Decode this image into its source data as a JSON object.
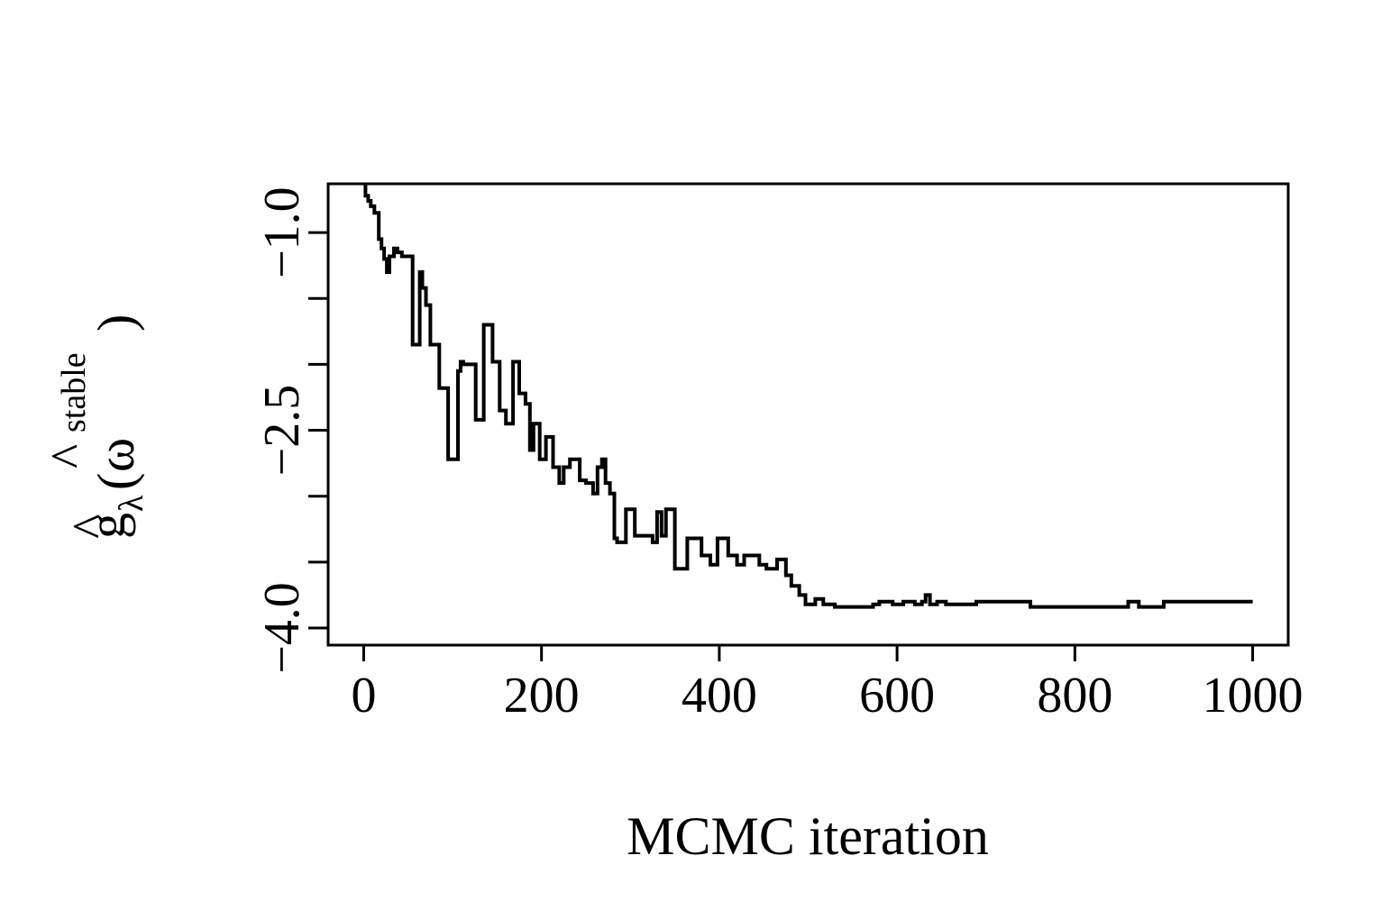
{
  "chart_data": {
    "type": "line",
    "title": "",
    "xlabel": "MCMC iteration",
    "ylabel": {
      "hat": "^",
      "g": "g",
      "sub": "λ",
      "open": "(",
      "omega": "ω",
      "sup": "stable",
      "close": ")"
    },
    "xlim": [
      -40,
      1040
    ],
    "ylim": [
      -4.13,
      -0.63
    ],
    "xticks": [
      0,
      200,
      400,
      600,
      800,
      1000
    ],
    "xtick_labels": [
      "0",
      "200",
      "400",
      "600",
      "800",
      "1000"
    ],
    "yticks": [
      -4.0,
      -3.5,
      -3.0,
      -2.5,
      -2.0,
      -1.5,
      -1.0
    ],
    "ytick_labels": [
      {
        "value": -4.0,
        "text": "−4.0"
      },
      {
        "value": -2.5,
        "text": "−2.5"
      },
      {
        "value": -1.0,
        "text": "−1.0"
      }
    ],
    "grid": false,
    "legend": "none",
    "line_color": "#000000",
    "series": [
      {
        "step": true,
        "x": [
          0,
          2,
          5,
          8,
          12,
          17,
          20,
          23,
          26,
          29,
          34,
          38,
          43,
          47,
          55,
          63,
          66,
          70,
          75,
          85,
          95,
          106,
          109,
          112,
          116,
          126,
          135,
          145,
          153,
          160,
          168,
          175,
          182,
          187,
          191,
          198,
          205,
          213,
          220,
          225,
          232,
          243,
          250,
          258,
          263,
          268,
          272,
          277,
          282,
          285,
          295,
          305,
          315,
          325,
          330,
          335,
          340,
          350,
          364,
          380,
          390,
          398,
          410,
          420,
          428,
          435,
          445,
          453,
          465,
          475,
          481,
          490,
          497,
          508,
          517,
          530,
          560,
          573,
          580,
          595,
          607,
          620,
          628,
          632,
          637,
          645,
          655,
          668,
          680,
          689,
          700,
          720,
          750,
          800,
          860,
          872,
          900,
          1000
        ],
        "y": [
          -0.65,
          -0.72,
          -0.76,
          -0.8,
          -0.85,
          -1.05,
          -1.12,
          -1.2,
          -1.3,
          -1.18,
          -1.12,
          -1.15,
          -1.18,
          -1.18,
          -1.85,
          -1.3,
          -1.42,
          -1.55,
          -1.85,
          -2.18,
          -2.72,
          -2.05,
          -1.98,
          -2.0,
          -2.0,
          -2.42,
          -1.7,
          -1.98,
          -2.35,
          -2.45,
          -1.98,
          -2.22,
          -2.3,
          -2.65,
          -2.45,
          -2.72,
          -2.55,
          -2.78,
          -2.9,
          -2.78,
          -2.72,
          -2.88,
          -2.9,
          -2.98,
          -2.78,
          -2.72,
          -2.9,
          -2.98,
          -3.32,
          -3.35,
          -3.1,
          -3.3,
          -3.3,
          -3.35,
          -3.12,
          -3.3,
          -3.1,
          -3.55,
          -3.32,
          -3.45,
          -3.52,
          -3.32,
          -3.45,
          -3.52,
          -3.45,
          -3.45,
          -3.52,
          -3.55,
          -3.48,
          -3.6,
          -3.68,
          -3.75,
          -3.82,
          -3.78,
          -3.82,
          -3.84,
          -3.84,
          -3.82,
          -3.8,
          -3.82,
          -3.8,
          -3.82,
          -3.8,
          -3.75,
          -3.82,
          -3.8,
          -3.82,
          -3.82,
          -3.82,
          -3.8,
          -3.8,
          -3.8,
          -3.84,
          -3.84,
          -3.8,
          -3.84,
          -3.8,
          -3.8
        ]
      }
    ]
  }
}
